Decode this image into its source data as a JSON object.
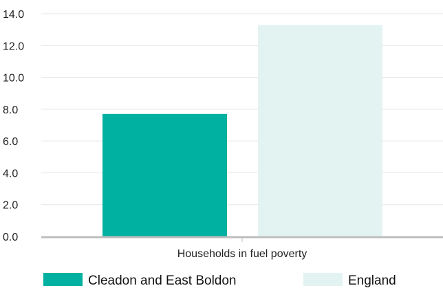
{
  "chart_data": {
    "type": "bar",
    "categories": [
      "Households in fuel poverty"
    ],
    "series": [
      {
        "name": "Cleadon and East Boldon",
        "values": [
          7.7
        ],
        "color": "#00b0a0"
      },
      {
        "name": "England",
        "values": [
          13.3
        ],
        "color": "#e3f3f2"
      }
    ],
    "title": "",
    "xlabel": "",
    "ylabel": "",
    "ylim": [
      0,
      14
    ],
    "yticks": [
      "0.0",
      "2.0",
      "4.0",
      "6.0",
      "8.0",
      "10.0",
      "12.0",
      "14.0"
    ],
    "grid": true,
    "legend_position": "bottom"
  }
}
